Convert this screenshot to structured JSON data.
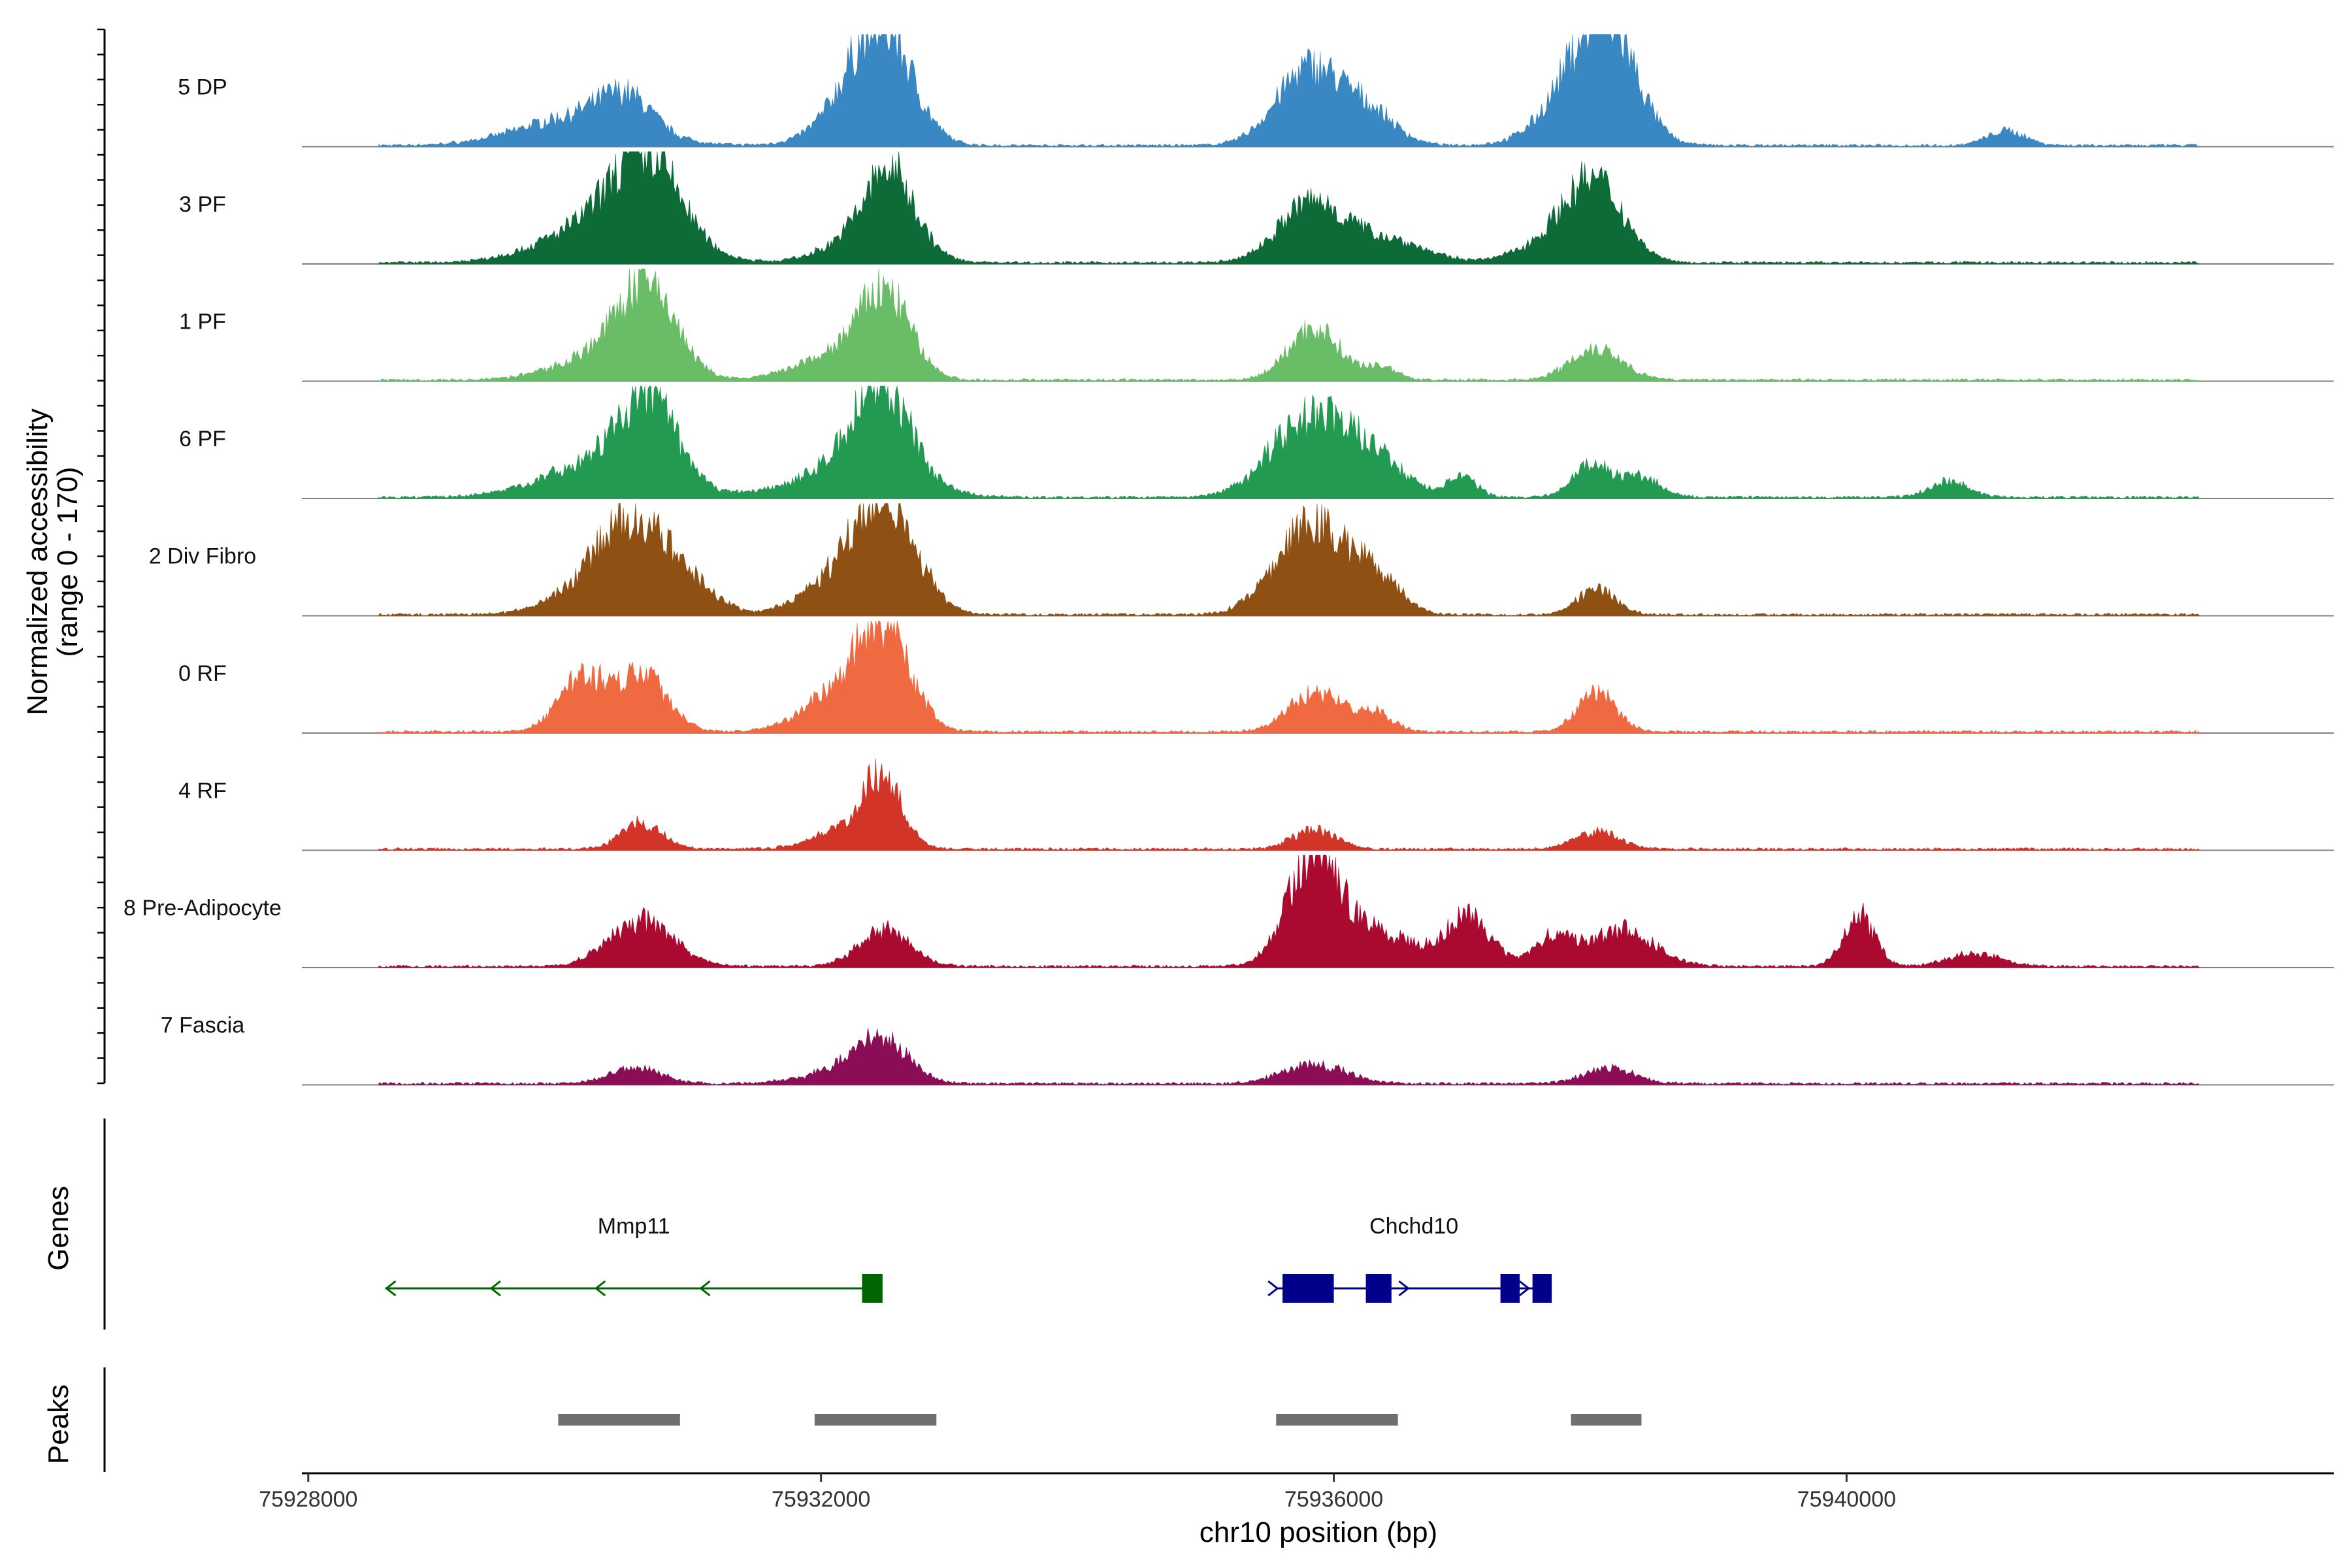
{
  "chart_data": {
    "type": "area",
    "ylabel_line1": "Normalized accessibility",
    "ylabel_line2": "(range 0 - 170)",
    "xlabel": "chr10 position (bp)",
    "xlim": [
      75927950,
      75943800
    ],
    "x_ticks": [
      75928000,
      75932000,
      75936000,
      75940000
    ],
    "x_tick_labels": [
      "75928000",
      "75932000",
      "75936000",
      "75940000"
    ],
    "ylim": [
      0,
      170
    ],
    "tracks": [
      {
        "name": "5 DP",
        "color": "#3A88C3",
        "peaks": [
          [
            75930120,
            45,
            450,
            1.0
          ],
          [
            75930480,
            45,
            200,
            1.1
          ],
          [
            75932480,
            170,
            230,
            1.0
          ],
          [
            75932200,
            170,
            260,
            0.22
          ],
          [
            75935820,
            120,
            260,
            1.0
          ],
          [
            75936300,
            120,
            200,
            0.35
          ],
          [
            75938130,
            170,
            230,
            1.0
          ],
          [
            75937850,
            170,
            260,
            0.35
          ],
          [
            75941250,
            45,
            150,
            0.5
          ]
        ]
      },
      {
        "name": "3 PF",
        "color": "#0D6B38",
        "peaks": [
          [
            75930350,
            120,
            450,
            0.55
          ],
          [
            75930650,
            120,
            250,
            1.0
          ],
          [
            75932400,
            100,
            300,
            0.5
          ],
          [
            75932550,
            100,
            180,
            1.0
          ],
          [
            75935820,
            90,
            250,
            1.0
          ],
          [
            75936400,
            90,
            300,
            0.4
          ],
          [
            75937800,
            100,
            300,
            0.4
          ],
          [
            75938050,
            100,
            220,
            1.0
          ]
        ]
      },
      {
        "name": "1 PF",
        "color": "#6ABD67",
        "peaks": [
          [
            75930300,
            130,
            350,
            0.3
          ],
          [
            75930650,
            130,
            220,
            1.0
          ],
          [
            75932100,
            140,
            300,
            0.25
          ],
          [
            75932500,
            140,
            200,
            0.9
          ],
          [
            75935850,
            80,
            200,
            1.0
          ],
          [
            75936380,
            80,
            120,
            0.25
          ],
          [
            75938050,
            50,
            200,
            1.0
          ]
        ]
      },
      {
        "name": "6 PF",
        "color": "#229A52",
        "peaks": [
          [
            75930350,
            120,
            450,
            0.5
          ],
          [
            75930650,
            120,
            200,
            1.0
          ],
          [
            75932300,
            130,
            400,
            0.45
          ],
          [
            75932480,
            130,
            200,
            1.0
          ],
          [
            75935800,
            120,
            300,
            1.0
          ],
          [
            75936300,
            120,
            250,
            0.45
          ],
          [
            75938020,
            50,
            150,
            1.0
          ],
          [
            75937000,
            50,
            120,
            0.6
          ],
          [
            75938400,
            50,
            150,
            0.6
          ],
          [
            75940800,
            50,
            150,
            0.5
          ]
        ]
      },
      {
        "name": "2 Div Fibro",
        "color": "#8E5113",
        "peaks": [
          [
            75930550,
            130,
            250,
            1.0
          ],
          [
            75930200,
            130,
            300,
            0.3
          ],
          [
            75931000,
            130,
            200,
            0.3
          ],
          [
            75932200,
            150,
            300,
            0.4
          ],
          [
            75932520,
            150,
            230,
            1.0
          ],
          [
            75935840,
            140,
            280,
            1.0
          ],
          [
            75936350,
            140,
            180,
            0.35
          ],
          [
            75938050,
            40,
            150,
            1.0
          ]
        ]
      },
      {
        "name": "0 RF",
        "color": "#F06A41",
        "peaks": [
          [
            75930130,
            90,
            180,
            0.9
          ],
          [
            75930600,
            90,
            200,
            1.0
          ],
          [
            75932200,
            130,
            300,
            0.5
          ],
          [
            75932500,
            130,
            200,
            1.0
          ],
          [
            75935850,
            60,
            200,
            1.0
          ],
          [
            75936300,
            60,
            150,
            0.5
          ],
          [
            75938050,
            60,
            150,
            1.0
          ]
        ]
      },
      {
        "name": "4 RF",
        "color": "#D23427",
        "peaks": [
          [
            75930600,
            40,
            160,
            1.0
          ],
          [
            75932200,
            100,
            250,
            0.3
          ],
          [
            75932480,
            100,
            150,
            1.0
          ],
          [
            75935850,
            30,
            170,
            1.0
          ],
          [
            75938050,
            30,
            170,
            0.9
          ]
        ]
      },
      {
        "name": "8 Pre-Adipocyte",
        "color": "#AA0A30",
        "peaks": [
          [
            75930600,
            70,
            250,
            1.0
          ],
          [
            75932500,
            55,
            200,
            1.0
          ],
          [
            75935840,
            170,
            200,
            1.0
          ],
          [
            75936350,
            170,
            300,
            0.3
          ],
          [
            75937050,
            95,
            170,
            0.8
          ],
          [
            75937700,
            95,
            150,
            0.45
          ],
          [
            75938250,
            95,
            250,
            0.6
          ],
          [
            75940100,
            80,
            120,
            1.0
          ],
          [
            75941000,
            80,
            200,
            0.25
          ]
        ]
      },
      {
        "name": "7 Fascia",
        "color": "#8B0D55",
        "peaks": [
          [
            75930550,
            25,
            200,
            1.0
          ],
          [
            75932200,
            60,
            300,
            0.35
          ],
          [
            75932480,
            60,
            200,
            1.0
          ],
          [
            75935850,
            30,
            250,
            1.0
          ],
          [
            75938150,
            30,
            200,
            0.8
          ]
        ]
      }
    ],
    "genes": [
      {
        "name": "Mmp11",
        "strand": "-",
        "color": "#006400",
        "start": 75928600,
        "end": 75932480,
        "exons": [
          [
            75932320,
            75932480
          ]
        ]
      },
      {
        "name": "Chchd10",
        "strand": "+",
        "color": "#00008B",
        "start": 75935550,
        "end": 75937700,
        "exons": [
          [
            75935600,
            75936000
          ],
          [
            75936250,
            75936450
          ],
          [
            75937300,
            75937450
          ],
          [
            75937550,
            75937700
          ]
        ]
      }
    ],
    "peaks_regions": [
      [
        75929950,
        75930900
      ],
      [
        75931950,
        75932900
      ],
      [
        75935550,
        75936500
      ],
      [
        75937850,
        75938400
      ]
    ],
    "panel_titles": {
      "genes": "Genes",
      "peaks": "Peaks"
    }
  }
}
